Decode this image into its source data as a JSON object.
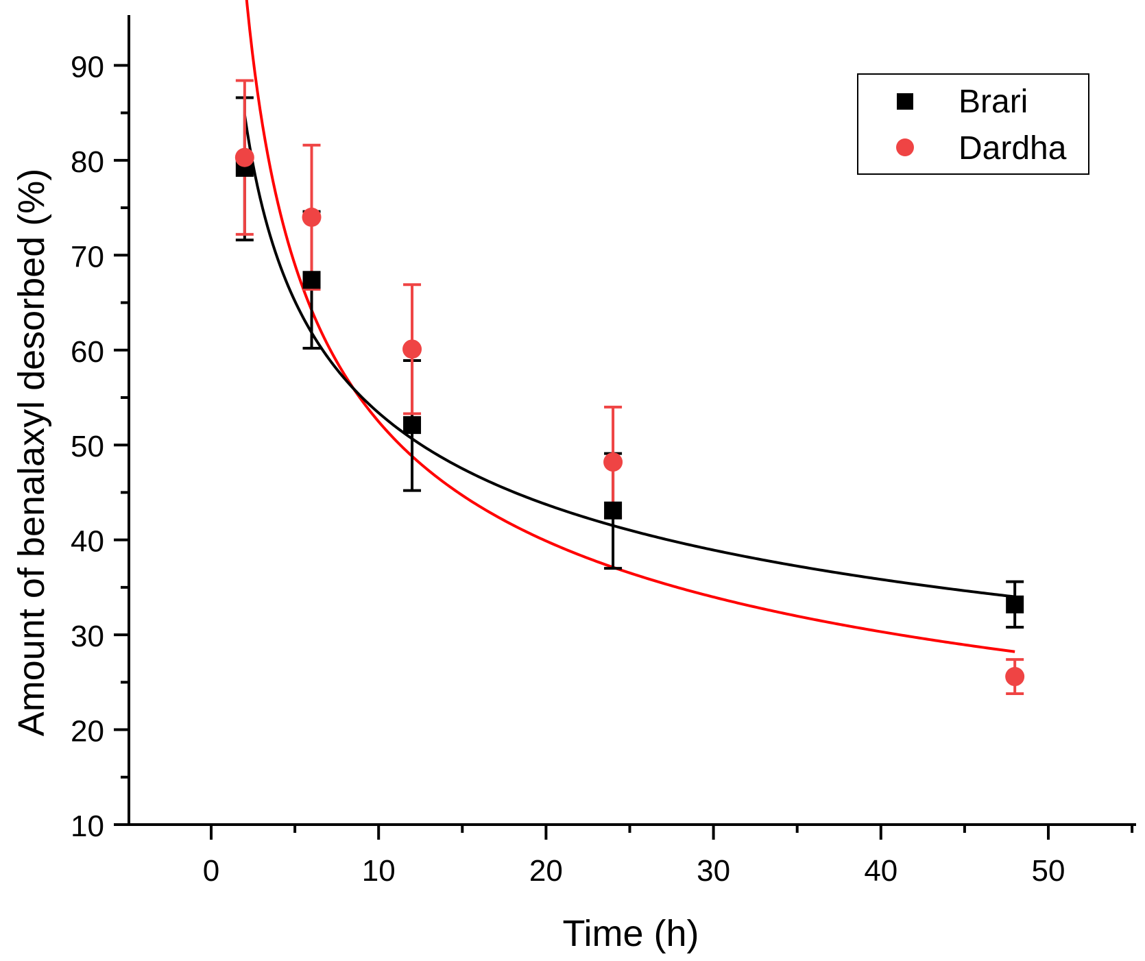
{
  "chart_data": {
    "type": "scatter",
    "title": "",
    "xlabel": "Time (h)",
    "ylabel": "Amount of benalaxyl desorbed (%)",
    "xlim": [
      -5,
      55
    ],
    "ylim": [
      10,
      95
    ],
    "x_ticks": [
      0,
      10,
      20,
      30,
      40,
      50
    ],
    "y_ticks": [
      10,
      20,
      30,
      40,
      50,
      60,
      70,
      80,
      90
    ],
    "x_tick_labels": [
      "0",
      "10",
      "20",
      "30",
      "40",
      "50"
    ],
    "y_tick_labels": [
      "10",
      "20",
      "30",
      "40",
      "50",
      "60",
      "70",
      "80",
      "90"
    ],
    "grid": false,
    "legend_position": "top-right",
    "series": [
      {
        "name": "Brari",
        "marker": "square",
        "color": "#000000",
        "fit_color": "#000000",
        "x": [
          2,
          6,
          12,
          24,
          48
        ],
        "y": [
          79.2,
          67.4,
          52.1,
          43.1,
          33.2
        ],
        "err_low": [
          71.6,
          60.2,
          45.2,
          37.0,
          30.8
        ],
        "err_high": [
          86.6,
          74.6,
          58.9,
          49.1,
          35.6
        ],
        "fit": {
          "model": "power",
          "k": 103.5,
          "n": -0.2875,
          "x_range": [
            2,
            48
          ]
        }
      },
      {
        "name": "Dardha",
        "marker": "circle",
        "color": "#ef4444",
        "fit_color": "#ff0000",
        "x": [
          2,
          6,
          12,
          24,
          48
        ],
        "y": [
          80.3,
          74.0,
          60.1,
          48.2,
          25.6
        ],
        "err_low": [
          72.2,
          66.4,
          53.3,
          42.4,
          23.8
        ],
        "err_high": [
          88.4,
          81.6,
          66.9,
          54.0,
          27.4
        ],
        "fit": {
          "model": "power",
          "k": 130.4,
          "n": -0.3954,
          "x_range": [
            2,
            48
          ]
        }
      }
    ]
  }
}
